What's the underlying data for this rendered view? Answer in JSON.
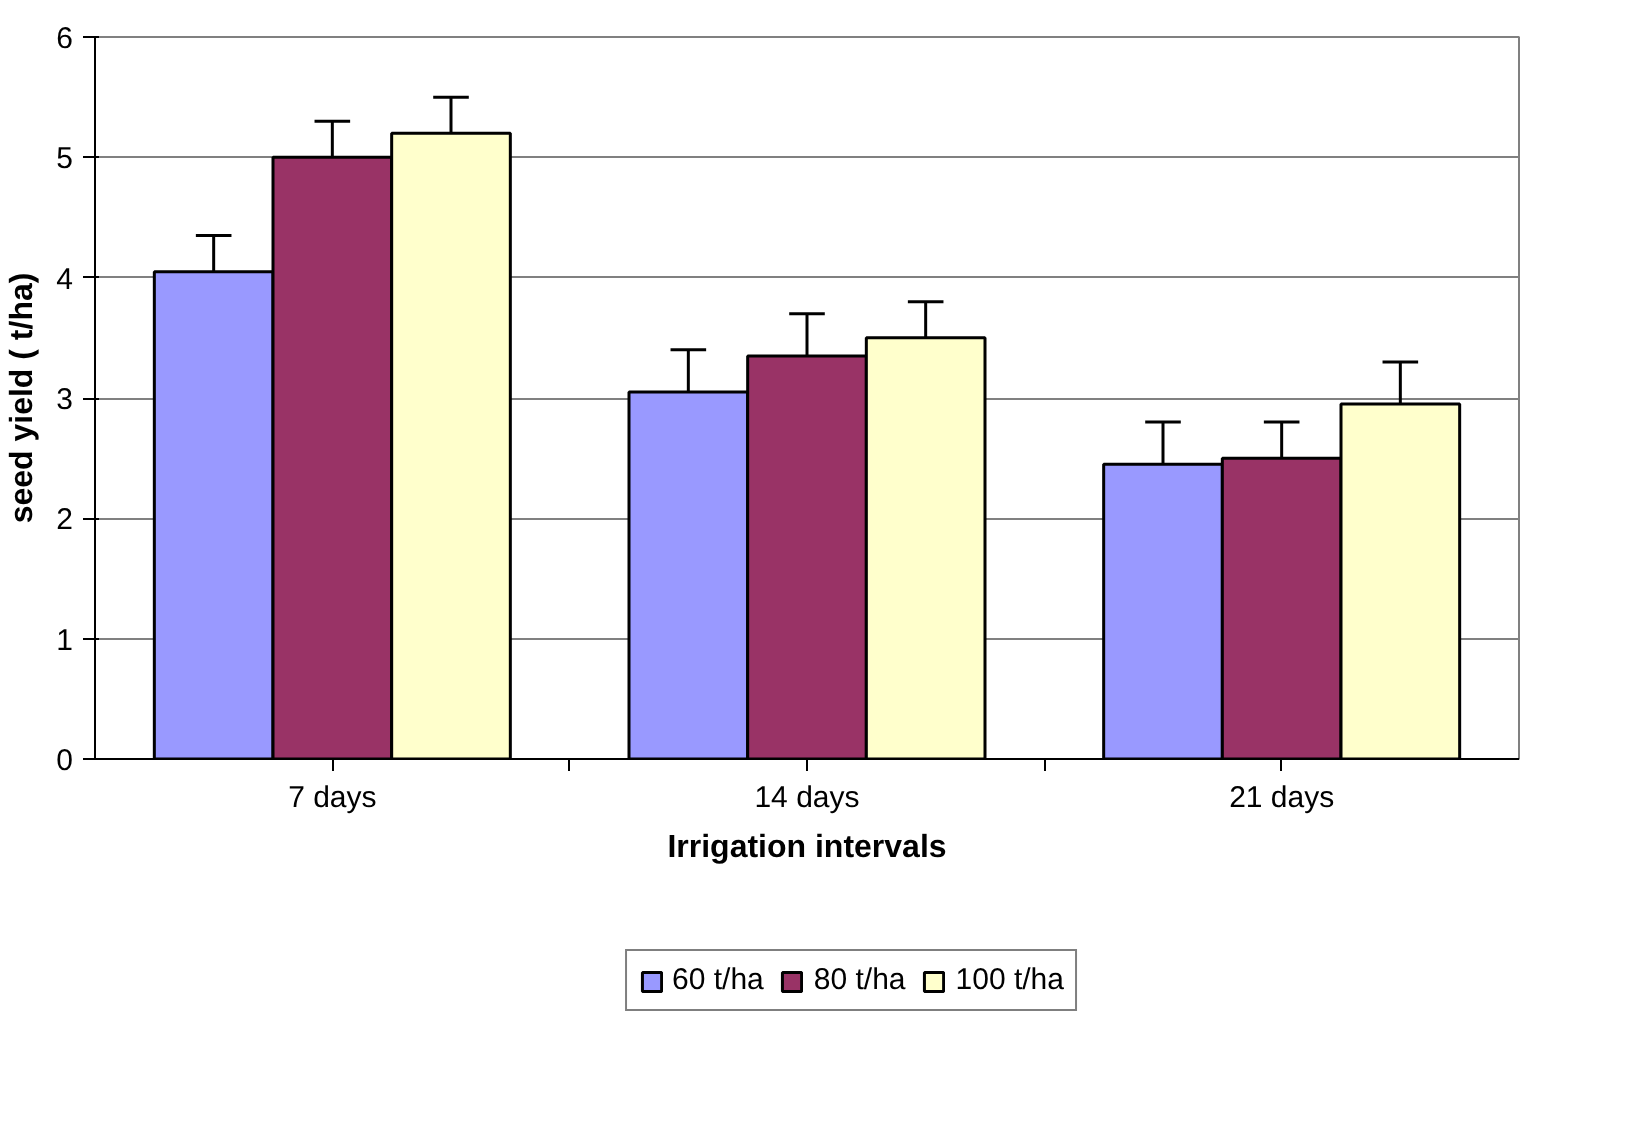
{
  "chart_data": {
    "type": "bar",
    "xlabel": "Irrigation intervals",
    "ylabel": "seed yield ( t/ha)",
    "categories": [
      "7 days",
      "14 days",
      "21 days"
    ],
    "series": [
      {
        "name": "60 t/ha",
        "color": "#9999ff",
        "values": [
          4.05,
          3.05,
          2.45
        ],
        "errors": [
          [
            4.05,
            4.35
          ],
          [
            3.05,
            3.4
          ],
          [
            2.45,
            2.8
          ]
        ]
      },
      {
        "name": "80 t/ha",
        "color": "#993366",
        "values": [
          5.0,
          3.35,
          2.5
        ],
        "errors": [
          [
            5.0,
            5.3
          ],
          [
            3.35,
            3.7
          ],
          [
            2.5,
            2.8
          ]
        ]
      },
      {
        "name": "100 t/ha",
        "color": "#ffffcc",
        "values": [
          5.2,
          3.5,
          2.95
        ],
        "errors": [
          [
            5.2,
            5.5
          ],
          [
            3.5,
            3.8
          ],
          [
            2.95,
            3.3
          ]
        ]
      }
    ],
    "ylim": [
      0,
      6
    ],
    "yticks": [
      0,
      1,
      2,
      3,
      4,
      5,
      6
    ],
    "grid": "y",
    "legend": "bottom"
  }
}
